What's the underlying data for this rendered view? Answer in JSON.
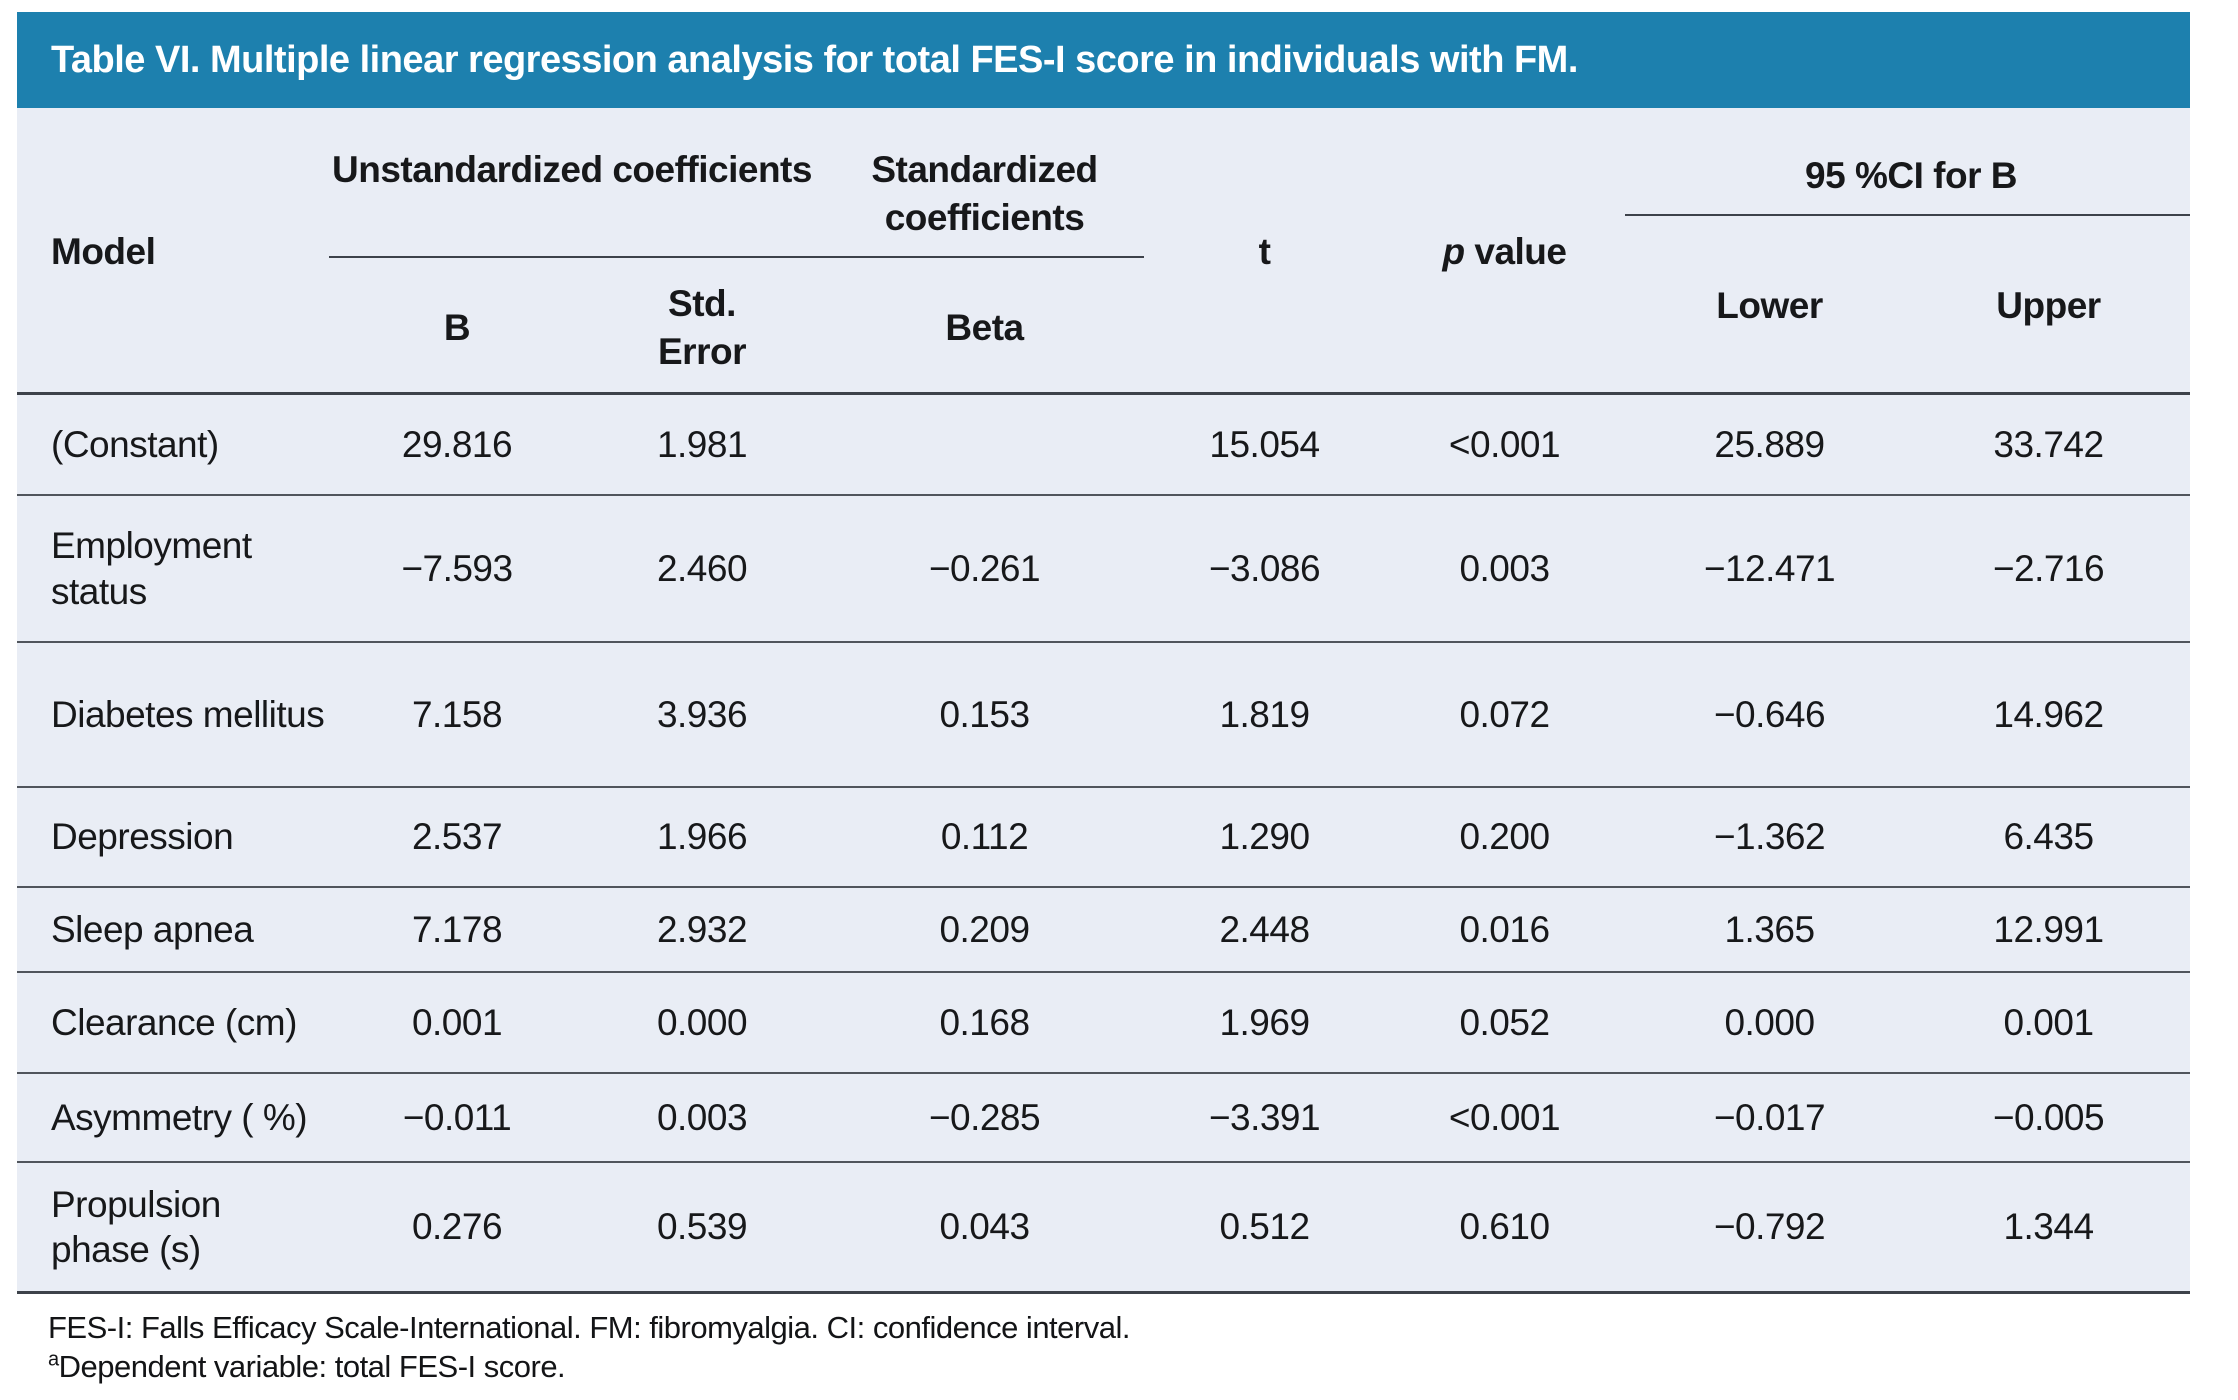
{
  "title": "Table VI. Multiple linear regression analysis for total FES-I score in individuals with FM.",
  "header": {
    "model": "Model",
    "group_unstandardized": "Unstandardized coefficients",
    "group_standardized": "Standardized coefficients",
    "group_ci": "95 %CI for B",
    "t": "t",
    "p_italic": "p",
    "p_rest": " value",
    "sub_b": "B",
    "sub_std_error": "Std.\nError",
    "sub_beta": "Beta",
    "sub_lower": "Lower",
    "sub_upper": "Upper"
  },
  "rows": [
    {
      "model": "(Constant)",
      "b": "29.816",
      "std_error": "1.981",
      "beta": "",
      "t": "15.054",
      "p": "<0.001",
      "lower": "25.889",
      "upper": "33.742"
    },
    {
      "model": "Employment status",
      "b": "−7.593",
      "std_error": "2.460",
      "beta": "−0.261",
      "t": "−3.086",
      "p": "0.003",
      "lower": "−12.471",
      "upper": "−2.716"
    },
    {
      "model": "Diabetes mellitus",
      "b": "7.158",
      "std_error": "3.936",
      "beta": "0.153",
      "t": "1.819",
      "p": "0.072",
      "lower": "−0.646",
      "upper": "14.962"
    },
    {
      "model": "Depression",
      "b": "2.537",
      "std_error": "1.966",
      "beta": "0.112",
      "t": "1.290",
      "p": "0.200",
      "lower": "−1.362",
      "upper": "6.435"
    },
    {
      "model": "Sleep apnea",
      "b": "7.178",
      "std_error": "2.932",
      "beta": "0.209",
      "t": "2.448",
      "p": "0.016",
      "lower": "1.365",
      "upper": "12.991"
    },
    {
      "model": "Clearance (cm)",
      "b": "0.001",
      "std_error": "0.000",
      "beta": "0.168",
      "t": "1.969",
      "p": "0.052",
      "lower": "0.000",
      "upper": "0.001"
    },
    {
      "model": "Asymmetry ( %)",
      "b": "−0.011",
      "std_error": "0.003",
      "beta": "−0.285",
      "t": "−3.391",
      "p": "<0.001",
      "lower": "−0.017",
      "upper": "−0.005"
    },
    {
      "model": "Propulsion phase (s)",
      "b": "0.276",
      "std_error": "0.539",
      "beta": "0.043",
      "t": "0.512",
      "p": "0.610",
      "lower": "−0.792",
      "upper": "1.344"
    }
  ],
  "footnotes": {
    "line1": "FES-I: Falls Efficacy Scale-International. FM: fibromyalgia. CI: confidence interval.",
    "line2_sup": "a",
    "line2": "Dependent variable: total FES-I score."
  },
  "colors": {
    "title_bar": "#1d80ae",
    "title_text": "#ffffff",
    "table_background": "#e9edf5",
    "rule_lines": "#3d424a",
    "text": "#17181a"
  }
}
